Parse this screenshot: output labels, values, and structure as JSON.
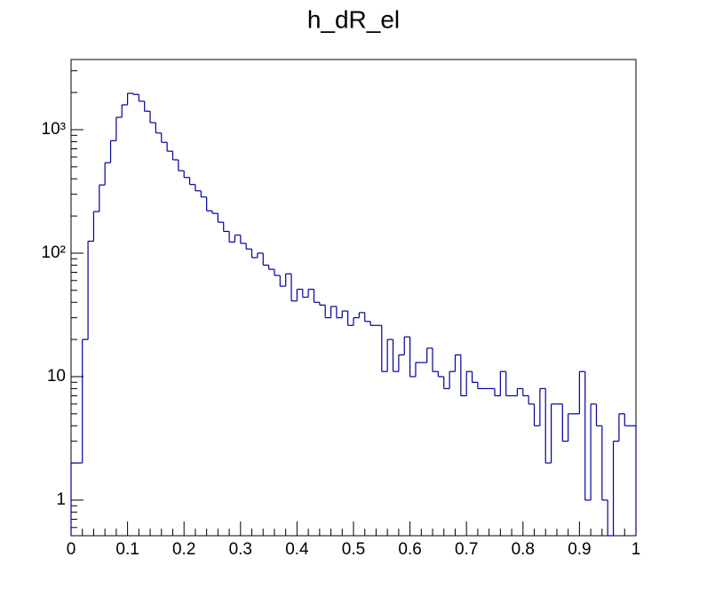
{
  "chart_data": {
    "type": "histogram",
    "title": "h_dR_el",
    "bins": [
      0,
      0.01,
      0.02,
      0.03,
      0.04,
      0.05,
      0.06,
      0.07,
      0.08,
      0.09,
      0.1,
      0.11,
      0.12,
      0.13,
      0.14,
      0.15,
      0.16,
      0.17,
      0.18,
      0.19,
      0.2,
      0.21,
      0.22,
      0.23,
      0.24,
      0.25,
      0.26,
      0.27,
      0.28,
      0.29,
      0.3,
      0.31,
      0.32,
      0.33,
      0.34,
      0.35,
      0.36,
      0.37,
      0.38,
      0.39,
      0.4,
      0.41,
      0.42,
      0.43,
      0.44,
      0.45,
      0.46,
      0.47,
      0.48,
      0.49,
      0.5,
      0.51,
      0.52,
      0.53,
      0.54,
      0.55,
      0.56,
      0.57,
      0.58,
      0.59,
      0.6,
      0.61,
      0.62,
      0.63,
      0.64,
      0.65,
      0.66,
      0.67,
      0.68,
      0.69,
      0.7,
      0.71,
      0.72,
      0.73,
      0.74,
      0.75,
      0.76,
      0.77,
      0.78,
      0.79,
      0.8,
      0.81,
      0.82,
      0.83,
      0.84,
      0.85,
      0.86,
      0.87,
      0.88,
      0.89,
      0.9,
      0.91,
      0.92,
      0.93,
      0.94,
      0.95,
      0.96,
      0.97,
      0.98,
      0.99,
      1
    ],
    "values": [
      2,
      2,
      20,
      125,
      217,
      357,
      540,
      815,
      1260,
      1590,
      1970,
      1930,
      1700,
      1410,
      1140,
      940,
      790,
      670,
      570,
      465,
      410,
      360,
      320,
      285,
      220,
      210,
      178,
      150,
      123,
      140,
      120,
      108,
      92,
      100,
      80,
      74,
      66,
      54,
      68,
      41,
      51,
      44,
      51,
      40,
      38,
      30,
      37,
      30,
      34,
      26,
      30,
      33,
      28,
      26,
      26,
      11,
      20,
      11,
      15,
      21,
      10,
      13,
      13,
      17,
      11,
      10,
      8,
      11,
      15,
      7,
      11,
      9,
      8,
      8,
      8,
      7,
      11,
      7,
      7,
      8,
      7,
      6,
      4,
      8,
      2,
      6,
      6,
      3,
      5,
      5,
      11,
      1,
      6,
      4,
      1,
      0,
      3,
      5,
      4,
      4
    ],
    "color": "#000099",
    "xlim": [
      0,
      1
    ],
    "xticks": [
      0,
      0.1,
      0.2,
      0.3,
      0.4,
      0.5,
      0.6,
      0.7,
      0.8,
      0.9,
      1
    ],
    "ylim": [
      0.515,
      3700
    ],
    "ylog": true,
    "yticks": [
      1,
      10,
      {
        "value": 100,
        "label": "10²"
      },
      {
        "value": 1000,
        "label": "10³"
      }
    ]
  }
}
